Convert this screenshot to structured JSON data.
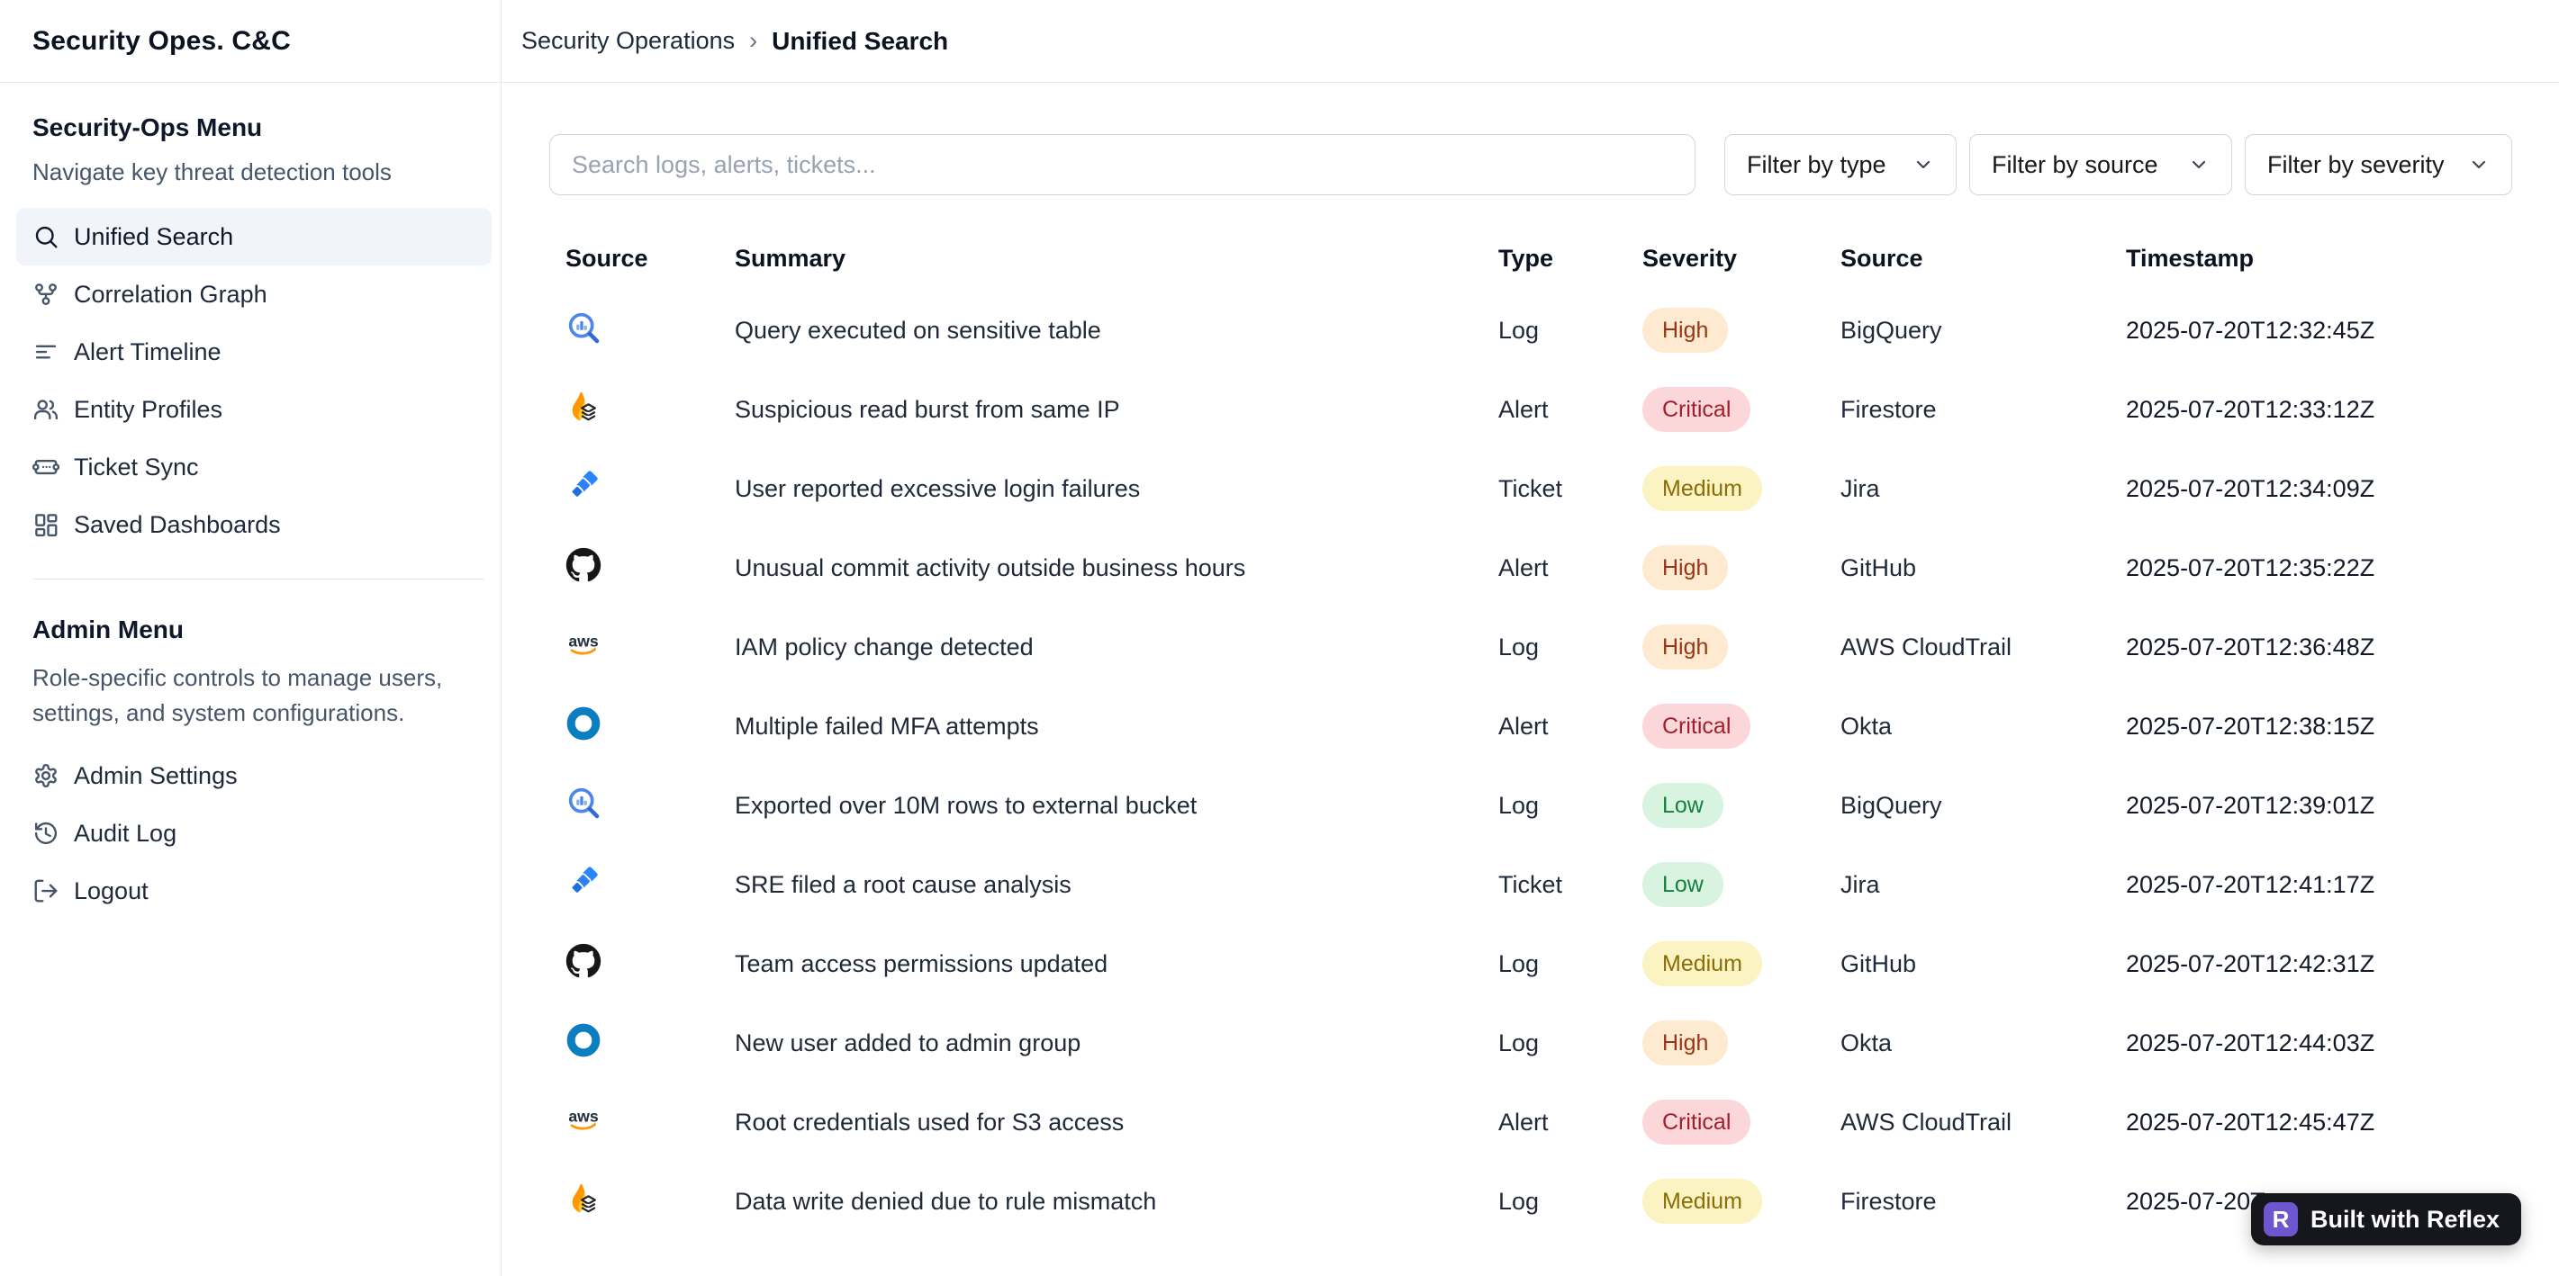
{
  "sidebar": {
    "title": "Security Opes. C&C",
    "menu": {
      "header": "Security-Ops Menu",
      "subtitle": "Navigate key threat detection tools",
      "items": [
        {
          "label": "Unified Search",
          "icon": "search-icon",
          "active": true
        },
        {
          "label": "Correlation Graph",
          "icon": "correlation-graph-icon",
          "active": false
        },
        {
          "label": "Alert Timeline",
          "icon": "timeline-icon",
          "active": false
        },
        {
          "label": "Entity Profiles",
          "icon": "users-icon",
          "active": false
        },
        {
          "label": "Ticket Sync",
          "icon": "ticket-icon",
          "active": false
        },
        {
          "label": "Saved Dashboards",
          "icon": "dashboard-icon",
          "active": false
        }
      ]
    },
    "admin": {
      "header": "Admin Menu",
      "description": "Role-specific controls to manage users, settings, and system configurations.",
      "items": [
        {
          "label": "Admin Settings",
          "icon": "gear-icon",
          "active": false
        },
        {
          "label": "Audit Log",
          "icon": "history-icon",
          "active": false
        },
        {
          "label": "Logout",
          "icon": "logout-icon",
          "active": false
        }
      ]
    }
  },
  "breadcrumb": {
    "section": "Security Operations",
    "separator": "›",
    "page": "Unified Search"
  },
  "toolbar": {
    "search_placeholder": "Search logs, alerts, tickets...",
    "filters": [
      {
        "label": "Filter by type"
      },
      {
        "label": "Filter by source"
      },
      {
        "label": "Filter by severity"
      }
    ]
  },
  "table": {
    "columns": [
      "Source",
      "Summary",
      "Type",
      "Severity",
      "Source",
      "Timestamp"
    ],
    "rows": [
      {
        "source_icon": "bigquery-icon",
        "summary": "Query executed on sensitive table",
        "type": "Log",
        "severity": "High",
        "source": "BigQuery",
        "timestamp": "2025-07-20T12:32:45Z"
      },
      {
        "source_icon": "firestore-icon",
        "summary": "Suspicious read burst from same IP",
        "type": "Alert",
        "severity": "Critical",
        "source": "Firestore",
        "timestamp": "2025-07-20T12:33:12Z"
      },
      {
        "source_icon": "jira-icon",
        "summary": "User reported excessive login failures",
        "type": "Ticket",
        "severity": "Medium",
        "source": "Jira",
        "timestamp": "2025-07-20T12:34:09Z"
      },
      {
        "source_icon": "github-icon",
        "summary": "Unusual commit activity outside business hours",
        "type": "Alert",
        "severity": "High",
        "source": "GitHub",
        "timestamp": "2025-07-20T12:35:22Z"
      },
      {
        "source_icon": "aws-icon",
        "summary": "IAM policy change detected",
        "type": "Log",
        "severity": "High",
        "source": "AWS CloudTrail",
        "timestamp": "2025-07-20T12:36:48Z"
      },
      {
        "source_icon": "okta-icon",
        "summary": "Multiple failed MFA attempts",
        "type": "Alert",
        "severity": "Critical",
        "source": "Okta",
        "timestamp": "2025-07-20T12:38:15Z"
      },
      {
        "source_icon": "bigquery-icon",
        "summary": "Exported over 10M rows to external bucket",
        "type": "Log",
        "severity": "Low",
        "source": "BigQuery",
        "timestamp": "2025-07-20T12:39:01Z"
      },
      {
        "source_icon": "jira-icon",
        "summary": "SRE filed a root cause analysis",
        "type": "Ticket",
        "severity": "Low",
        "source": "Jira",
        "timestamp": "2025-07-20T12:41:17Z"
      },
      {
        "source_icon": "github-icon",
        "summary": "Team access permissions updated",
        "type": "Log",
        "severity": "Medium",
        "source": "GitHub",
        "timestamp": "2025-07-20T12:42:31Z"
      },
      {
        "source_icon": "okta-icon",
        "summary": "New user added to admin group",
        "type": "Log",
        "severity": "High",
        "source": "Okta",
        "timestamp": "2025-07-20T12:44:03Z"
      },
      {
        "source_icon": "aws-icon",
        "summary": "Root credentials used for S3 access",
        "type": "Alert",
        "severity": "Critical",
        "source": "AWS CloudTrail",
        "timestamp": "2025-07-20T12:45:47Z"
      },
      {
        "source_icon": "firestore-icon",
        "summary": "Data write denied due to rule mismatch",
        "type": "Log",
        "severity": "Medium",
        "source": "Firestore",
        "timestamp": "2025-07-20T"
      }
    ]
  },
  "severity_styles": {
    "High": {
      "bg": "#FDEAD1",
      "text": "#9A3412"
    },
    "Critical": {
      "bg": "#FBD7DA",
      "text": "#A21E2B"
    },
    "Medium": {
      "bg": "#FBF3C2",
      "text": "#8A6D05"
    },
    "Low": {
      "bg": "#D8F3E0",
      "text": "#15803D"
    }
  },
  "reflex_badge": {
    "label": "Built with Reflex",
    "bg": "#15171c",
    "icon_bg": "#6E56CF",
    "icon_letter": "R"
  }
}
